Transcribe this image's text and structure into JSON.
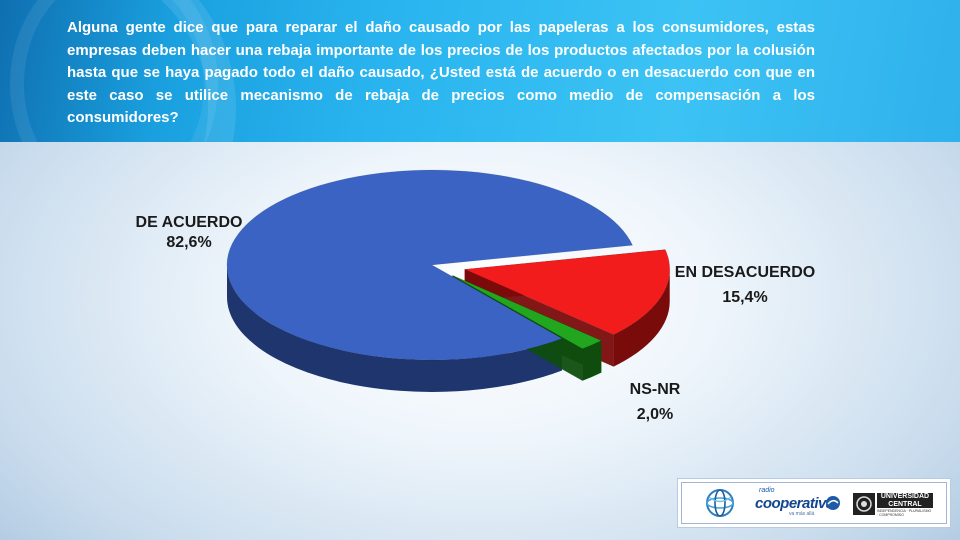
{
  "question": "Alguna gente dice que para reparar el daño causado por las papeleras a los consumidores, estas empresas deben hacer una rebaja importante de los precios de los productos afectados por la colusión hasta que se haya pagado todo el daño causado, ¿Usted está de acuerdo o en desacuerdo con que en este caso se utilice mecanismo de rebaja de precios como medio de compensación a los consumidores?",
  "chart_data": {
    "type": "pie",
    "style": "3d-exploded",
    "categories": [
      "DE ACUERDO",
      "EN DESACUERDO",
      "NS-NR"
    ],
    "values": [
      82.6,
      15.4,
      2.0
    ],
    "value_labels": [
      "82,6%",
      "15,4%",
      "2,0%"
    ],
    "colors": [
      "#3a63c4",
      "#f21c1c",
      "#22a61e"
    ],
    "side_colors": [
      "#1f356e",
      "#7a0b0b",
      "#0f4d0f"
    ],
    "legend": "none"
  },
  "logos": {
    "radio_small": "radio",
    "radio_name": "cooperativa",
    "radio_tag": "va más allá",
    "university": "UNIVERSIDAD CENTRAL",
    "university_sub": "INDEPENDENCIA · PLURALISMO · COMPROMISO"
  }
}
